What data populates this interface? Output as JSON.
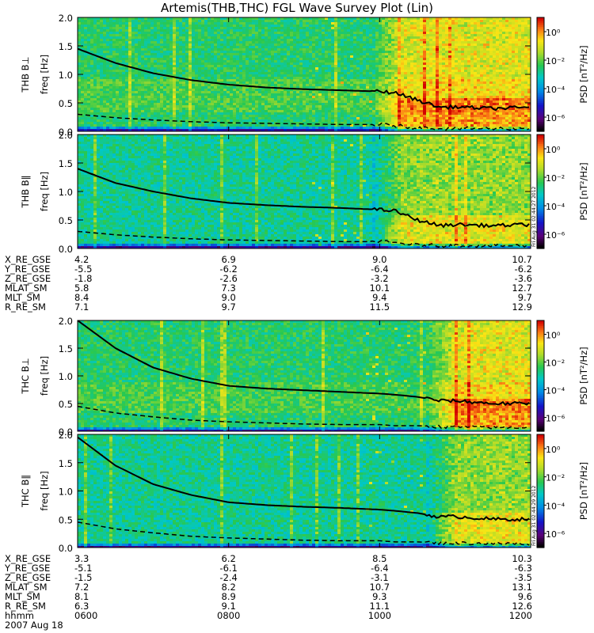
{
  "title": "Artemis(THB,THC) FGL Wave Survey Plot (Lin)",
  "colors": {
    "frame": "#000000",
    "curve_solid": "#000000",
    "curve_dashed": "#000000"
  },
  "panels": [
    {
      "id": "thb-bperp",
      "probe": "THB B⊥",
      "ylabel": "freq [Hz]",
      "cb_label": "PSD [nT²/Hz]",
      "stamp": ""
    },
    {
      "id": "thb-bpar",
      "probe": "THB B∥",
      "ylabel": "freq [Hz]",
      "cb_label": "PSD [nT²/Hz]",
      "stamp": "Fri Aug 31 02:44:27 2012"
    },
    {
      "id": "thc-bperp",
      "probe": "THC B⊥",
      "ylabel": "freq [Hz]",
      "cb_label": "PSD [nT²/Hz]",
      "stamp": ""
    },
    {
      "id": "thc-bpar",
      "probe": "THC B∥",
      "ylabel": "freq [Hz]",
      "cb_label": "PSD [nT²/Hz]",
      "stamp": "Fri Aug 31 02:44:29 2012"
    }
  ],
  "y_ticks": [
    "0.0",
    "0.5",
    "1.0",
    "1.5",
    "2.0"
  ],
  "cb_ticks": [
    "10⁰",
    "10⁻²",
    "10⁻⁴",
    "10⁻⁶"
  ],
  "ephemeris_thb": {
    "labels": [
      "X_RE_GSE",
      "Y_RE_GSE",
      "Z_RE_GSE",
      "MLAT_SM",
      "MLT_SM",
      "R_RE_SM"
    ],
    "values": [
      [
        "4.2",
        "6.9",
        "9.0",
        "10.7"
      ],
      [
        "-5.5",
        "-6.2",
        "-6.4",
        "-6.2"
      ],
      [
        "-1.8",
        "-2.6",
        "-3.2",
        "-3.6"
      ],
      [
        "5.8",
        "7.3",
        "10.1",
        "12.7"
      ],
      [
        "8.4",
        "9.0",
        "9.4",
        "9.7"
      ],
      [
        "7.1",
        "9.7",
        "11.5",
        "12.9"
      ]
    ]
  },
  "ephemeris_thc": {
    "labels": [
      "X_RE_GSE",
      "Y_RE_GSE",
      "Z_RE_GSE",
      "MLAT_SM",
      "MLT_SM",
      "R_RE_SM",
      "hhmm"
    ],
    "values": [
      [
        "3.3",
        "6.2",
        "8.5",
        "10.3"
      ],
      [
        "-5.1",
        "-6.1",
        "-6.4",
        "-6.3"
      ],
      [
        "-1.5",
        "-2.4",
        "-3.1",
        "-3.5"
      ],
      [
        "7.2",
        "8.2",
        "10.7",
        "13.1"
      ],
      [
        "8.1",
        "8.9",
        "9.3",
        "9.6"
      ],
      [
        "6.3",
        "9.1",
        "11.1",
        "12.6"
      ],
      [
        "0600",
        "0800",
        "1000",
        "1200"
      ]
    ]
  },
  "date": "2007 Aug 18",
  "chart_data": {
    "type": "heatmap",
    "title": "Artemis(THB,THC) FGL Wave Survey Plot (Lin)",
    "x": {
      "label": "hhmm",
      "ticks": [
        "0600",
        "0800",
        "1000",
        "1200"
      ],
      "range": [
        600,
        1200
      ]
    },
    "y": {
      "label": "freq [Hz]",
      "range": [
        0,
        2.0
      ],
      "ticks": [
        0.0,
        0.5,
        1.0,
        1.5,
        2.0
      ]
    },
    "colorbar": {
      "label": "PSD [nT²/Hz]",
      "scale": "log",
      "range_exponent": [
        -7,
        1
      ],
      "ticks": [
        "10⁰",
        "10⁻²",
        "10⁻⁴",
        "10⁻⁶"
      ]
    },
    "curve_hours": [
      6.0,
      6.5,
      7.0,
      7.5,
      8.0,
      8.5,
      9.0,
      9.5,
      10.0,
      10.2,
      10.5,
      10.8,
      11.0,
      11.5,
      12.0
    ],
    "panels": [
      {
        "name": "THB B⊥",
        "solid_fce": [
          1.45,
          1.2,
          1.02,
          0.9,
          0.82,
          0.77,
          0.74,
          0.72,
          0.7,
          0.68,
          0.55,
          0.42,
          0.43,
          0.4,
          0.42
        ],
        "dashed": [
          0.3,
          0.24,
          0.2,
          0.17,
          0.15,
          0.14,
          0.13,
          0.12,
          0.12,
          0.1,
          0.06,
          0.05,
          0.05,
          0.05,
          0.05
        ],
        "activity_start_hour": 9.9
      },
      {
        "name": "THB B∥",
        "solid_fce": [
          1.4,
          1.15,
          1.0,
          0.88,
          0.8,
          0.76,
          0.73,
          0.71,
          0.68,
          0.66,
          0.5,
          0.4,
          0.42,
          0.4,
          0.42
        ],
        "dashed": [
          0.3,
          0.24,
          0.2,
          0.17,
          0.15,
          0.14,
          0.13,
          0.12,
          0.12,
          0.1,
          0.06,
          0.05,
          0.05,
          0.05,
          0.05
        ],
        "activity_start_hour": 9.9
      },
      {
        "name": "THC B⊥",
        "solid_fce": [
          2.0,
          1.5,
          1.15,
          0.95,
          0.82,
          0.77,
          0.74,
          0.71,
          0.68,
          0.66,
          0.62,
          0.55,
          0.55,
          0.5,
          0.5
        ],
        "dashed": [
          0.45,
          0.33,
          0.26,
          0.2,
          0.17,
          0.15,
          0.13,
          0.12,
          0.12,
          0.1,
          0.1,
          0.08,
          0.08,
          0.07,
          0.07
        ],
        "activity_start_hour": 10.6
      },
      {
        "name": "THC B∥",
        "solid_fce": [
          1.95,
          1.45,
          1.12,
          0.93,
          0.8,
          0.75,
          0.72,
          0.7,
          0.67,
          0.65,
          0.61,
          0.54,
          0.55,
          0.5,
          0.5
        ],
        "dashed": [
          0.45,
          0.33,
          0.26,
          0.2,
          0.17,
          0.15,
          0.13,
          0.12,
          0.12,
          0.1,
          0.1,
          0.08,
          0.08,
          0.07,
          0.07
        ],
        "activity_start_hour": 10.6
      }
    ]
  }
}
